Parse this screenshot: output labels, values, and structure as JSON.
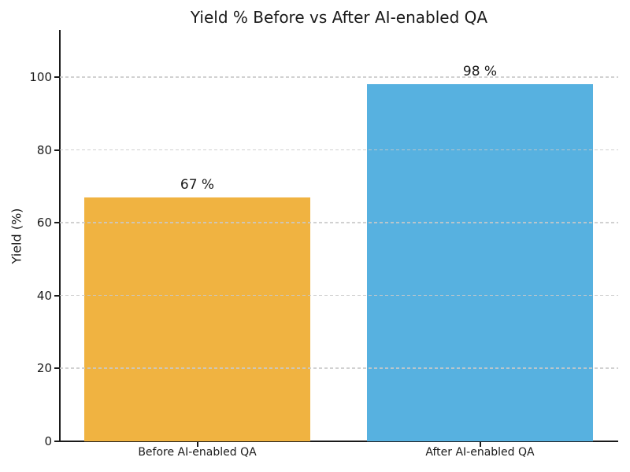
{
  "title": "Yield % Before vs After AI-enabled QA",
  "chart_data": {
    "type": "bar",
    "title": "Yield % Before vs After AI-enabled QA",
    "categories": [
      "Before AI-enabled QA",
      "After AI-enabled QA"
    ],
    "values": [
      67,
      98
    ],
    "value_labels": [
      "67 %",
      "98 %"
    ],
    "bar_colors": [
      "#F0B341",
      "#57B1E0"
    ],
    "xlabel": "",
    "ylabel": "Yield (%)",
    "ylim": [
      0,
      113
    ],
    "yticks": [
      0,
      20,
      40,
      60,
      80,
      100
    ],
    "grid": {
      "axis": "y",
      "style": "dashed",
      "color": "#c9c9c9",
      "drawn_over_bars": true
    },
    "legend_position": "none",
    "axis_color": "#1a1a1a",
    "text_color": "#1a1a1a",
    "background_color": "#ffffff"
  }
}
